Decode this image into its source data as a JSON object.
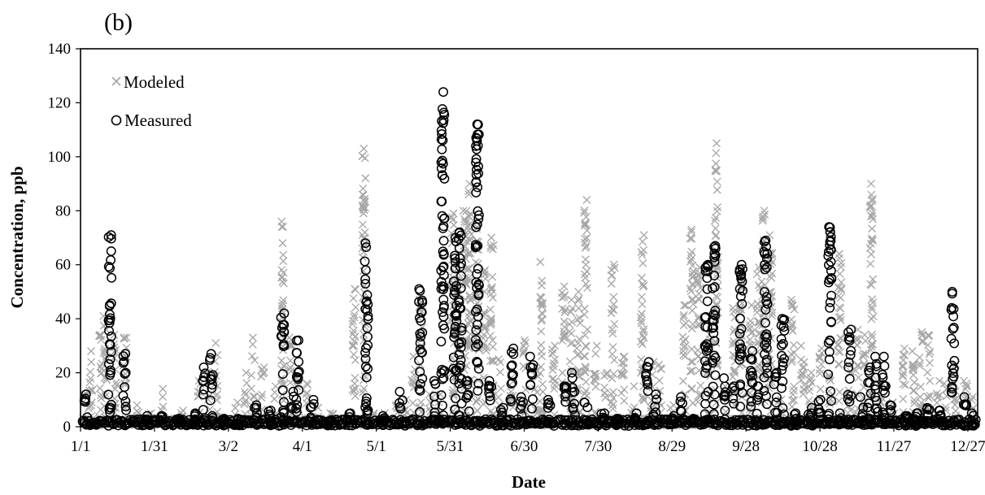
{
  "chart_data": {
    "type": "scatter",
    "panel_label": "(b)",
    "xlabel": "Date",
    "ylabel": "Concentration, ppb",
    "xlim": [
      1,
      365
    ],
    "ylim": [
      0,
      140
    ],
    "y_ticks": [
      0,
      20,
      40,
      60,
      80,
      100,
      120,
      140
    ],
    "x_ticks": [
      {
        "day": 1,
        "label": "1/1"
      },
      {
        "day": 31,
        "label": "1/31"
      },
      {
        "day": 61,
        "label": "3/2"
      },
      {
        "day": 91,
        "label": "4/1"
      },
      {
        "day": 121,
        "label": "5/1"
      },
      {
        "day": 151,
        "label": "5/31"
      },
      {
        "day": 181,
        "label": "6/30"
      },
      {
        "day": 211,
        "label": "7/30"
      },
      {
        "day": 241,
        "label": "8/29"
      },
      {
        "day": 271,
        "label": "9/28"
      },
      {
        "day": 301,
        "label": "10/28"
      },
      {
        "day": 331,
        "label": "11/27"
      },
      {
        "day": 361,
        "label": "12/27"
      }
    ],
    "grid": false,
    "legend_position": "top-left",
    "series": [
      {
        "name": "Modeled",
        "marker": "x",
        "color": "#a6a6a6",
        "episodes": [
          {
            "day": 3,
            "peak": 12
          },
          {
            "day": 5,
            "peak": 28
          },
          {
            "day": 9,
            "peak": 34
          },
          {
            "day": 11,
            "peak": 41
          },
          {
            "day": 15,
            "peak": 34
          },
          {
            "day": 19,
            "peak": 33
          },
          {
            "day": 24,
            "peak": 8
          },
          {
            "day": 29,
            "peak": 5
          },
          {
            "day": 34,
            "peak": 14
          },
          {
            "day": 42,
            "peak": 6
          },
          {
            "day": 49,
            "peak": 17
          },
          {
            "day": 53,
            "peak": 20
          },
          {
            "day": 56,
            "peak": 31
          },
          {
            "day": 64,
            "peak": 9
          },
          {
            "day": 68,
            "peak": 20
          },
          {
            "day": 71,
            "peak": 33
          },
          {
            "day": 75,
            "peak": 22
          },
          {
            "day": 80,
            "peak": 15
          },
          {
            "day": 83,
            "peak": 76
          },
          {
            "day": 86,
            "peak": 33
          },
          {
            "day": 89,
            "peak": 18
          },
          {
            "day": 93,
            "peak": 16
          },
          {
            "day": 97,
            "peak": 7
          },
          {
            "day": 103,
            "peak": 5
          },
          {
            "day": 108,
            "peak": 3
          },
          {
            "day": 112,
            "peak": 51
          },
          {
            "day": 116,
            "peak": 103
          },
          {
            "day": 120,
            "peak": 5
          },
          {
            "day": 125,
            "peak": 5
          },
          {
            "day": 129,
            "peak": 8
          },
          {
            "day": 133,
            "peak": 10
          },
          {
            "day": 136,
            "peak": 26
          },
          {
            "day": 139,
            "peak": 47
          },
          {
            "day": 143,
            "peak": 12
          },
          {
            "day": 147,
            "peak": 12
          },
          {
            "day": 152,
            "peak": 79
          },
          {
            "day": 154,
            "peak": 60
          },
          {
            "day": 157,
            "peak": 80
          },
          {
            "day": 159,
            "peak": 90
          },
          {
            "day": 162,
            "peak": 74
          },
          {
            "day": 165,
            "peak": 58
          },
          {
            "day": 168,
            "peak": 70
          },
          {
            "day": 171,
            "peak": 25
          },
          {
            "day": 176,
            "peak": 18
          },
          {
            "day": 181,
            "peak": 32
          },
          {
            "day": 186,
            "peak": 21
          },
          {
            "day": 188,
            "peak": 61
          },
          {
            "day": 193,
            "peak": 30
          },
          {
            "day": 197,
            "peak": 52
          },
          {
            "day": 200,
            "peak": 47
          },
          {
            "day": 203,
            "peak": 50
          },
          {
            "day": 206,
            "peak": 84
          },
          {
            "day": 210,
            "peak": 30
          },
          {
            "day": 214,
            "peak": 20
          },
          {
            "day": 217,
            "peak": 60
          },
          {
            "day": 221,
            "peak": 26
          },
          {
            "day": 225,
            "peak": 15
          },
          {
            "day": 229,
            "peak": 71
          },
          {
            "day": 233,
            "peak": 24
          },
          {
            "day": 236,
            "peak": 23
          },
          {
            "day": 241,
            "peak": 8
          },
          {
            "day": 246,
            "peak": 45
          },
          {
            "day": 249,
            "peak": 73
          },
          {
            "day": 252,
            "peak": 59
          },
          {
            "day": 256,
            "peak": 34
          },
          {
            "day": 259,
            "peak": 105
          },
          {
            "day": 263,
            "peak": 15
          },
          {
            "day": 266,
            "peak": 44
          },
          {
            "day": 269,
            "peak": 54
          },
          {
            "day": 273,
            "peak": 45
          },
          {
            "day": 276,
            "peak": 59
          },
          {
            "day": 278,
            "peak": 80
          },
          {
            "day": 281,
            "peak": 71
          },
          {
            "day": 285,
            "peak": 10
          },
          {
            "day": 290,
            "peak": 47
          },
          {
            "day": 294,
            "peak": 30
          },
          {
            "day": 297,
            "peak": 20
          },
          {
            "day": 301,
            "peak": 29
          },
          {
            "day": 305,
            "peak": 19
          },
          {
            "day": 309,
            "peak": 64
          },
          {
            "day": 313,
            "peak": 23
          },
          {
            "day": 316,
            "peak": 36
          },
          {
            "day": 319,
            "peak": 34
          },
          {
            "day": 322,
            "peak": 90
          },
          {
            "day": 326,
            "peak": 16
          },
          {
            "day": 331,
            "peak": 9
          },
          {
            "day": 335,
            "peak": 29
          },
          {
            "day": 339,
            "peak": 28
          },
          {
            "day": 342,
            "peak": 35
          },
          {
            "day": 345,
            "peak": 34
          },
          {
            "day": 349,
            "peak": 17
          },
          {
            "day": 352,
            "peak": 16
          },
          {
            "day": 356,
            "peak": 23
          },
          {
            "day": 360,
            "peak": 17
          },
          {
            "day": 363,
            "peak": 11
          }
        ]
      },
      {
        "name": "Measured",
        "marker": "o",
        "color": "#000000",
        "episodes": [
          {
            "day": 3,
            "peak": 12
          },
          {
            "day": 13,
            "peak": 71
          },
          {
            "day": 19,
            "peak": 27
          },
          {
            "day": 28,
            "peak": 4
          },
          {
            "day": 34,
            "peak": 4
          },
          {
            "day": 41,
            "peak": 3
          },
          {
            "day": 47,
            "peak": 5
          },
          {
            "day": 51,
            "peak": 22
          },
          {
            "day": 54,
            "peak": 27
          },
          {
            "day": 59,
            "peak": 3
          },
          {
            "day": 65,
            "peak": 3
          },
          {
            "day": 72,
            "peak": 8
          },
          {
            "day": 78,
            "peak": 6
          },
          {
            "day": 83,
            "peak": 42
          },
          {
            "day": 87,
            "peak": 13
          },
          {
            "day": 89,
            "peak": 32
          },
          {
            "day": 95,
            "peak": 10
          },
          {
            "day": 102,
            "peak": 2
          },
          {
            "day": 110,
            "peak": 5
          },
          {
            "day": 117,
            "peak": 68
          },
          {
            "day": 124,
            "peak": 4
          },
          {
            "day": 131,
            "peak": 13
          },
          {
            "day": 139,
            "peak": 51
          },
          {
            "day": 145,
            "peak": 17
          },
          {
            "day": 148,
            "peak": 124
          },
          {
            "day": 153,
            "peak": 70
          },
          {
            "day": 155,
            "peak": 72
          },
          {
            "day": 158,
            "peak": 17
          },
          {
            "day": 162,
            "peak": 112
          },
          {
            "day": 167,
            "peak": 17
          },
          {
            "day": 172,
            "peak": 7
          },
          {
            "day": 176,
            "peak": 29
          },
          {
            "day": 180,
            "peak": 11
          },
          {
            "day": 184,
            "peak": 26
          },
          {
            "day": 191,
            "peak": 10
          },
          {
            "day": 198,
            "peak": 15
          },
          {
            "day": 201,
            "peak": 20
          },
          {
            "day": 206,
            "peak": 9
          },
          {
            "day": 213,
            "peak": 5
          },
          {
            "day": 219,
            "peak": 3
          },
          {
            "day": 226,
            "peak": 5
          },
          {
            "day": 231,
            "peak": 24
          },
          {
            "day": 234,
            "peak": 12
          },
          {
            "day": 241,
            "peak": 4
          },
          {
            "day": 245,
            "peak": 11
          },
          {
            "day": 250,
            "peak": 3
          },
          {
            "day": 255,
            "peak": 60
          },
          {
            "day": 258,
            "peak": 67
          },
          {
            "day": 262,
            "peak": 18
          },
          {
            "day": 266,
            "peak": 15
          },
          {
            "day": 269,
            "peak": 60
          },
          {
            "day": 273,
            "peak": 28
          },
          {
            "day": 276,
            "peak": 15
          },
          {
            "day": 279,
            "peak": 69
          },
          {
            "day": 283,
            "peak": 20
          },
          {
            "day": 286,
            "peak": 40
          },
          {
            "day": 291,
            "peak": 5
          },
          {
            "day": 297,
            "peak": 7
          },
          {
            "day": 301,
            "peak": 10
          },
          {
            "day": 305,
            "peak": 74
          },
          {
            "day": 309,
            "peak": 5
          },
          {
            "day": 313,
            "peak": 36
          },
          {
            "day": 318,
            "peak": 11
          },
          {
            "day": 321,
            "peak": 22
          },
          {
            "day": 324,
            "peak": 26
          },
          {
            "day": 327,
            "peak": 26
          },
          {
            "day": 330,
            "peak": 8
          },
          {
            "day": 336,
            "peak": 4
          },
          {
            "day": 340,
            "peak": 5
          },
          {
            "day": 345,
            "peak": 7
          },
          {
            "day": 350,
            "peak": 6
          },
          {
            "day": 355,
            "peak": 50
          },
          {
            "day": 360,
            "peak": 11
          },
          {
            "day": 363,
            "peak": 5
          }
        ]
      }
    ]
  }
}
